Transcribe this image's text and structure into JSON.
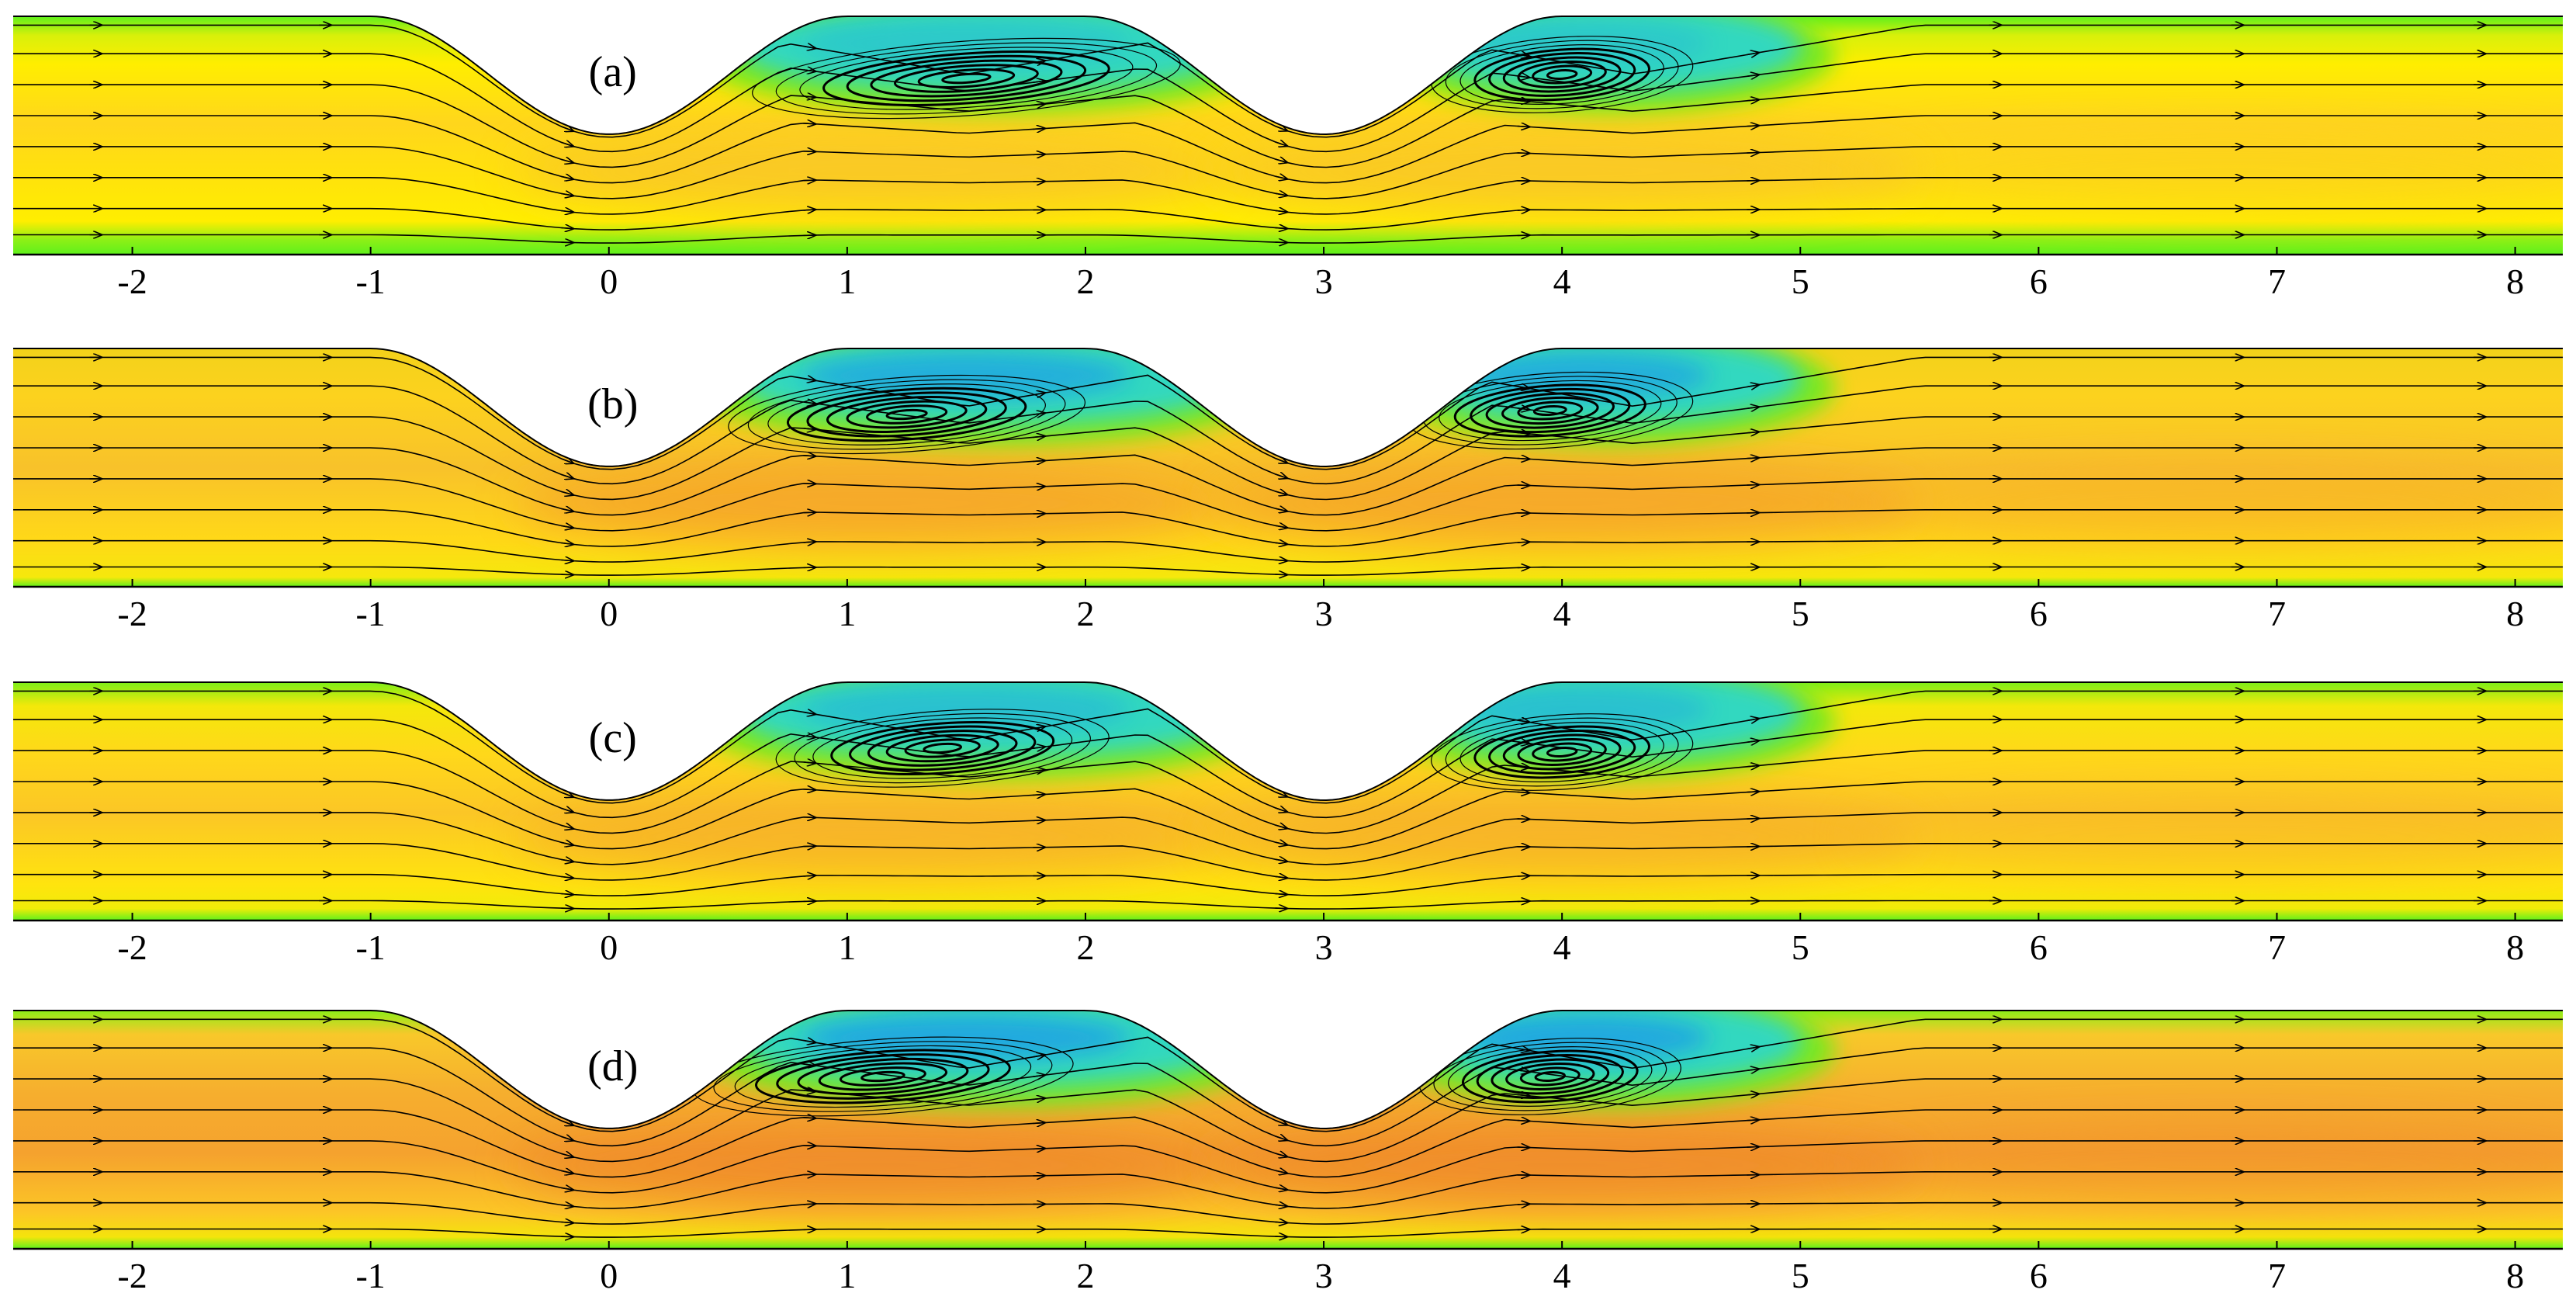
{
  "chart_data": [
    {
      "type": "contour",
      "label": "(a)",
      "xlim": [
        -2.5,
        8.2
      ],
      "xticks": [
        -2,
        -1,
        0,
        1,
        2,
        3,
        4,
        5,
        6,
        7,
        8
      ]
    },
    {
      "type": "contour",
      "label": "(b)",
      "xlim": [
        -2.5,
        8.2
      ],
      "xticks": [
        -2,
        -1,
        0,
        1,
        2,
        3,
        4,
        5,
        6,
        7,
        8
      ]
    },
    {
      "type": "contour",
      "label": "(c)",
      "xlim": [
        -2.5,
        8.2
      ],
      "xticks": [
        -2,
        -1,
        0,
        1,
        2,
        3,
        4,
        5,
        6,
        7,
        8
      ]
    },
    {
      "type": "contour",
      "label": "(d)",
      "xlim": [
        -2.5,
        8.2
      ],
      "xticks": [
        -2,
        -1,
        0,
        1,
        2,
        3,
        4,
        5,
        6,
        7,
        8
      ]
    }
  ]
}
